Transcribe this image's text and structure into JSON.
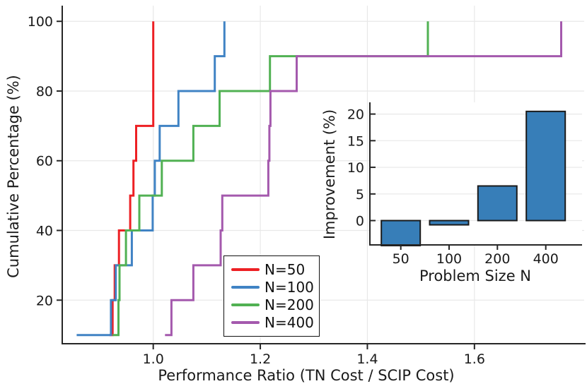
{
  "figure": {
    "background": "#ffffff",
    "text_color": "#1a1a1a",
    "grid_color": "#e8e8e8",
    "spine_color": "#262626"
  },
  "chart_data": [
    {
      "type": "line",
      "subtype": "step-post-cumulative",
      "title": "",
      "xlabel": "Performance Ratio (TN Cost / SCIP Cost)",
      "ylabel": "Cumulative Percentage (%)",
      "xlim": [
        0.83,
        1.805
      ],
      "ylim": [
        7.5,
        104.5
      ],
      "x_ticks": [
        1.0,
        1.2,
        1.4,
        1.6
      ],
      "x_tick_labels": [
        "1.0",
        "1.2",
        "1.4",
        "1.6"
      ],
      "y_ticks": [
        20,
        40,
        60,
        80,
        100
      ],
      "y_tick_labels": [
        "20",
        "40",
        "60",
        "80",
        "100"
      ],
      "grid": true,
      "legend_position": "lower center-left",
      "y_levels": [
        10,
        20,
        30,
        40,
        50,
        60,
        70,
        80,
        90,
        100
      ],
      "series": [
        {
          "name": "N=50",
          "color": "#ed2024",
          "x": [
            0.918,
            0.924,
            0.928,
            0.936,
            0.957,
            0.963,
            0.968,
            1.0,
            1.0,
            1.0
          ]
        },
        {
          "name": "N=100",
          "color": "#4083c4",
          "x": [
            0.857,
            0.921,
            0.93,
            0.96,
            0.999,
            1.003,
            1.012,
            1.047,
            1.115,
            1.133
          ]
        },
        {
          "name": "N=200",
          "color": "#51b153",
          "x": [
            0.924,
            0.935,
            0.937,
            0.949,
            0.974,
            1.016,
            1.075,
            1.124,
            1.218,
            1.513
          ]
        },
        {
          "name": "N=400",
          "color": "#a459ad",
          "x": [
            1.022,
            1.034,
            1.075,
            1.126,
            1.129,
            1.215,
            1.217,
            1.219,
            1.268,
            1.762
          ]
        }
      ]
    },
    {
      "type": "bar",
      "title": "",
      "xlabel": "Problem Size N",
      "ylabel": "Improvement (%)",
      "categories": [
        "50",
        "100",
        "200",
        "400"
      ],
      "values": [
        -4.7,
        -0.8,
        6.5,
        20.5
      ],
      "ylim": [
        -4.7,
        22.2
      ],
      "y_ticks": [
        0,
        5,
        10,
        15,
        20
      ],
      "y_tick_labels": [
        "0",
        "5",
        "10",
        "15",
        "20"
      ],
      "grid": true,
      "bar_color": "#377eb8",
      "bar_edge_color": "#1a1a1a"
    }
  ]
}
